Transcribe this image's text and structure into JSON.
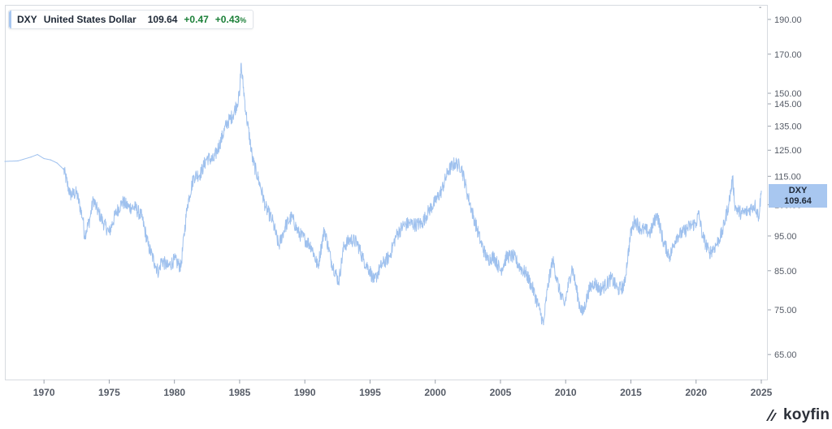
{
  "legend": {
    "ticker": "DXY",
    "name": "United States Dollar",
    "price": "109.64",
    "change": "+0.47",
    "percent": "+0.43",
    "percent_sign": "%"
  },
  "price_tag": {
    "ticker": "DXY",
    "value": "109.64"
  },
  "collapse_mark": "-",
  "brand": "koyfin",
  "colors": {
    "line": "#9fc1ee",
    "positive": "#1a7f37",
    "tag": "#a8c7f0"
  },
  "chart_data": {
    "type": "line",
    "title": "",
    "xlabel": "",
    "ylabel": "",
    "y_scale": "log",
    "ylim": [
      60,
      197
    ],
    "xlim": [
      1967.0,
      2025.5
    ],
    "x_ticks": [
      "1970",
      "1975",
      "1980",
      "1985",
      "1990",
      "1995",
      "2000",
      "2005",
      "2010",
      "2015",
      "2020",
      "2025"
    ],
    "y_ticks": [
      "190.00",
      "170.00",
      "150.00",
      "145.00",
      "135.00",
      "125.00",
      "115.00",
      "105.00",
      "95.00",
      "85.00",
      "75.00",
      "65.00"
    ],
    "grid": false,
    "legend_position": "top-left",
    "series": [
      {
        "name": "DXY",
        "x": [
          1967.0,
          1968.0,
          1969.0,
          1969.5,
          1970.0,
          1970.5,
          1971.0,
          1971.5,
          1972.0,
          1972.5,
          1973.0,
          1973.1,
          1973.5,
          1973.8,
          1974.0,
          1974.5,
          1975.0,
          1975.5,
          1976.0,
          1976.5,
          1977.0,
          1977.5,
          1978.0,
          1978.5,
          1978.8,
          1979.0,
          1979.5,
          1980.0,
          1980.5,
          1981.0,
          1981.5,
          1982.0,
          1982.5,
          1983.0,
          1983.5,
          1984.0,
          1984.5,
          1985.0,
          1985.1,
          1985.5,
          1986.0,
          1986.5,
          1987.0,
          1987.5,
          1988.0,
          1988.5,
          1989.0,
          1989.5,
          1990.0,
          1990.5,
          1991.0,
          1991.5,
          1992.0,
          1992.6,
          1993.0,
          1993.5,
          1994.0,
          1994.5,
          1995.0,
          1995.3,
          1995.8,
          1996.0,
          1996.5,
          1997.0,
          1997.5,
          1998.0,
          1998.5,
          1999.0,
          1999.5,
          2000.0,
          2000.5,
          2001.0,
          2001.5,
          2002.0,
          2002.5,
          2003.0,
          2003.5,
          2004.0,
          2004.5,
          2005.0,
          2005.5,
          2006.0,
          2006.5,
          2007.0,
          2007.5,
          2008.0,
          2008.3,
          2008.6,
          2009.0,
          2009.5,
          2009.9,
          2010.5,
          2011.0,
          2011.3,
          2011.8,
          2012.2,
          2012.6,
          2013.0,
          2013.5,
          2014.0,
          2014.5,
          2015.0,
          2015.3,
          2015.8,
          2016.0,
          2016.5,
          2017.0,
          2017.5,
          2018.0,
          2018.5,
          2019.0,
          2019.5,
          2020.0,
          2020.2,
          2020.5,
          2021.0,
          2021.5,
          2022.0,
          2022.5,
          2022.8,
          2023.0,
          2023.5,
          2024.0,
          2024.5,
          2024.8,
          2025.0
        ],
        "y": [
          120.6,
          120.8,
          122.3,
          123.3,
          121.7,
          121.2,
          120.0,
          117.6,
          108.4,
          109.0,
          100.0,
          95.0,
          100.0,
          107.0,
          104.0,
          99.5,
          96.0,
          102.0,
          106.0,
          104.2,
          104.0,
          101.0,
          92.0,
          87.0,
          84.5,
          88.0,
          86.0,
          88.0,
          86.0,
          105.0,
          115.0,
          116.0,
          122.0,
          121.0,
          128.0,
          136.0,
          140.0,
          149.0,
          164.7,
          140.0,
          121.0,
          113.0,
          104.0,
          100.0,
          92.0,
          98.0,
          101.0,
          96.0,
          94.0,
          92.0,
          86.0,
          97.0,
          88.0,
          82.0,
          92.0,
          94.0,
          93.0,
          88.0,
          85.0,
          82.0,
          86.0,
          87.0,
          89.0,
          95.0,
          98.0,
          99.0,
          98.5,
          99.0,
          103.0,
          106.0,
          110.0,
          117.0,
          120.0,
          118.5,
          108.0,
          100.0,
          93.0,
          88.0,
          89.0,
          85.0,
          89.0,
          89.0,
          86.0,
          84.0,
          80.0,
          75.0,
          71.5,
          80.0,
          88.0,
          80.0,
          76.0,
          86.0,
          77.0,
          74.0,
          80.0,
          82.0,
          80.0,
          81.0,
          83.0,
          80.0,
          81.0,
          96.0,
          100.0,
          97.0,
          97.0,
          96.0,
          102.0,
          93.0,
          89.0,
          95.0,
          96.0,
          98.0,
          99.0,
          102.0,
          95.0,
          90.0,
          92.0,
          96.0,
          105.0,
          114.0,
          104.0,
          102.0,
          103.0,
          105.0,
          101.0,
          109.64
        ]
      }
    ]
  }
}
